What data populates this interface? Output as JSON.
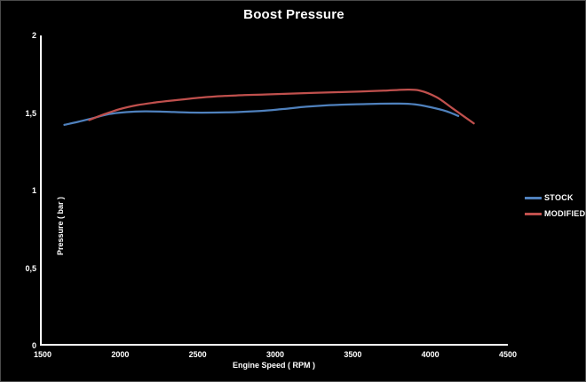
{
  "frame": {
    "background": "#000000",
    "border_color": "#4b4b4b",
    "axis_color": "#ffffff",
    "text_color": "#ffffff"
  },
  "chart_data": {
    "type": "line",
    "title": "Boost Pressure",
    "xlabel": "Engine Speed ( RPM )",
    "ylabel": "Pressure ( bar )",
    "xlim": [
      1500,
      4500
    ],
    "ylim": [
      0,
      2
    ],
    "grid": false,
    "legend_position": "right",
    "x_ticks": {
      "values": [
        1500,
        2000,
        2500,
        3000,
        3500,
        4000,
        4500
      ],
      "labels": [
        "1500",
        "2000",
        "2500",
        "3000",
        "3500",
        "4000",
        "4500"
      ]
    },
    "y_ticks": {
      "values": [
        0,
        0.5,
        1,
        1.5,
        2
      ],
      "labels": [
        "0",
        "0,5",
        "1",
        "1,5",
        "2"
      ]
    },
    "series": [
      {
        "name": "STOCK",
        "color": "#4f81bd",
        "points": [
          [
            1640,
            1.42
          ],
          [
            1730,
            1.44
          ],
          [
            1830,
            1.465
          ],
          [
            1930,
            1.49
          ],
          [
            2040,
            1.503
          ],
          [
            2160,
            1.508
          ],
          [
            2300,
            1.505
          ],
          [
            2450,
            1.5
          ],
          [
            2600,
            1.5
          ],
          [
            2750,
            1.503
          ],
          [
            2900,
            1.51
          ],
          [
            3050,
            1.523
          ],
          [
            3200,
            1.538
          ],
          [
            3350,
            1.548
          ],
          [
            3500,
            1.553
          ],
          [
            3650,
            1.557
          ],
          [
            3800,
            1.558
          ],
          [
            3900,
            1.553
          ],
          [
            4000,
            1.535
          ],
          [
            4100,
            1.51
          ],
          [
            4180,
            1.478
          ]
        ]
      },
      {
        "name": "MODIFIED",
        "color": "#c0504d",
        "points": [
          [
            1800,
            1.452
          ],
          [
            1900,
            1.49
          ],
          [
            2000,
            1.523
          ],
          [
            2110,
            1.548
          ],
          [
            2240,
            1.567
          ],
          [
            2380,
            1.583
          ],
          [
            2520,
            1.597
          ],
          [
            2660,
            1.607
          ],
          [
            2800,
            1.613
          ],
          [
            2950,
            1.618
          ],
          [
            3100,
            1.623
          ],
          [
            3250,
            1.628
          ],
          [
            3400,
            1.632
          ],
          [
            3550,
            1.637
          ],
          [
            3700,
            1.642
          ],
          [
            3830,
            1.648
          ],
          [
            3930,
            1.643
          ],
          [
            4040,
            1.6
          ],
          [
            4140,
            1.53
          ],
          [
            4280,
            1.43
          ]
        ]
      }
    ]
  }
}
